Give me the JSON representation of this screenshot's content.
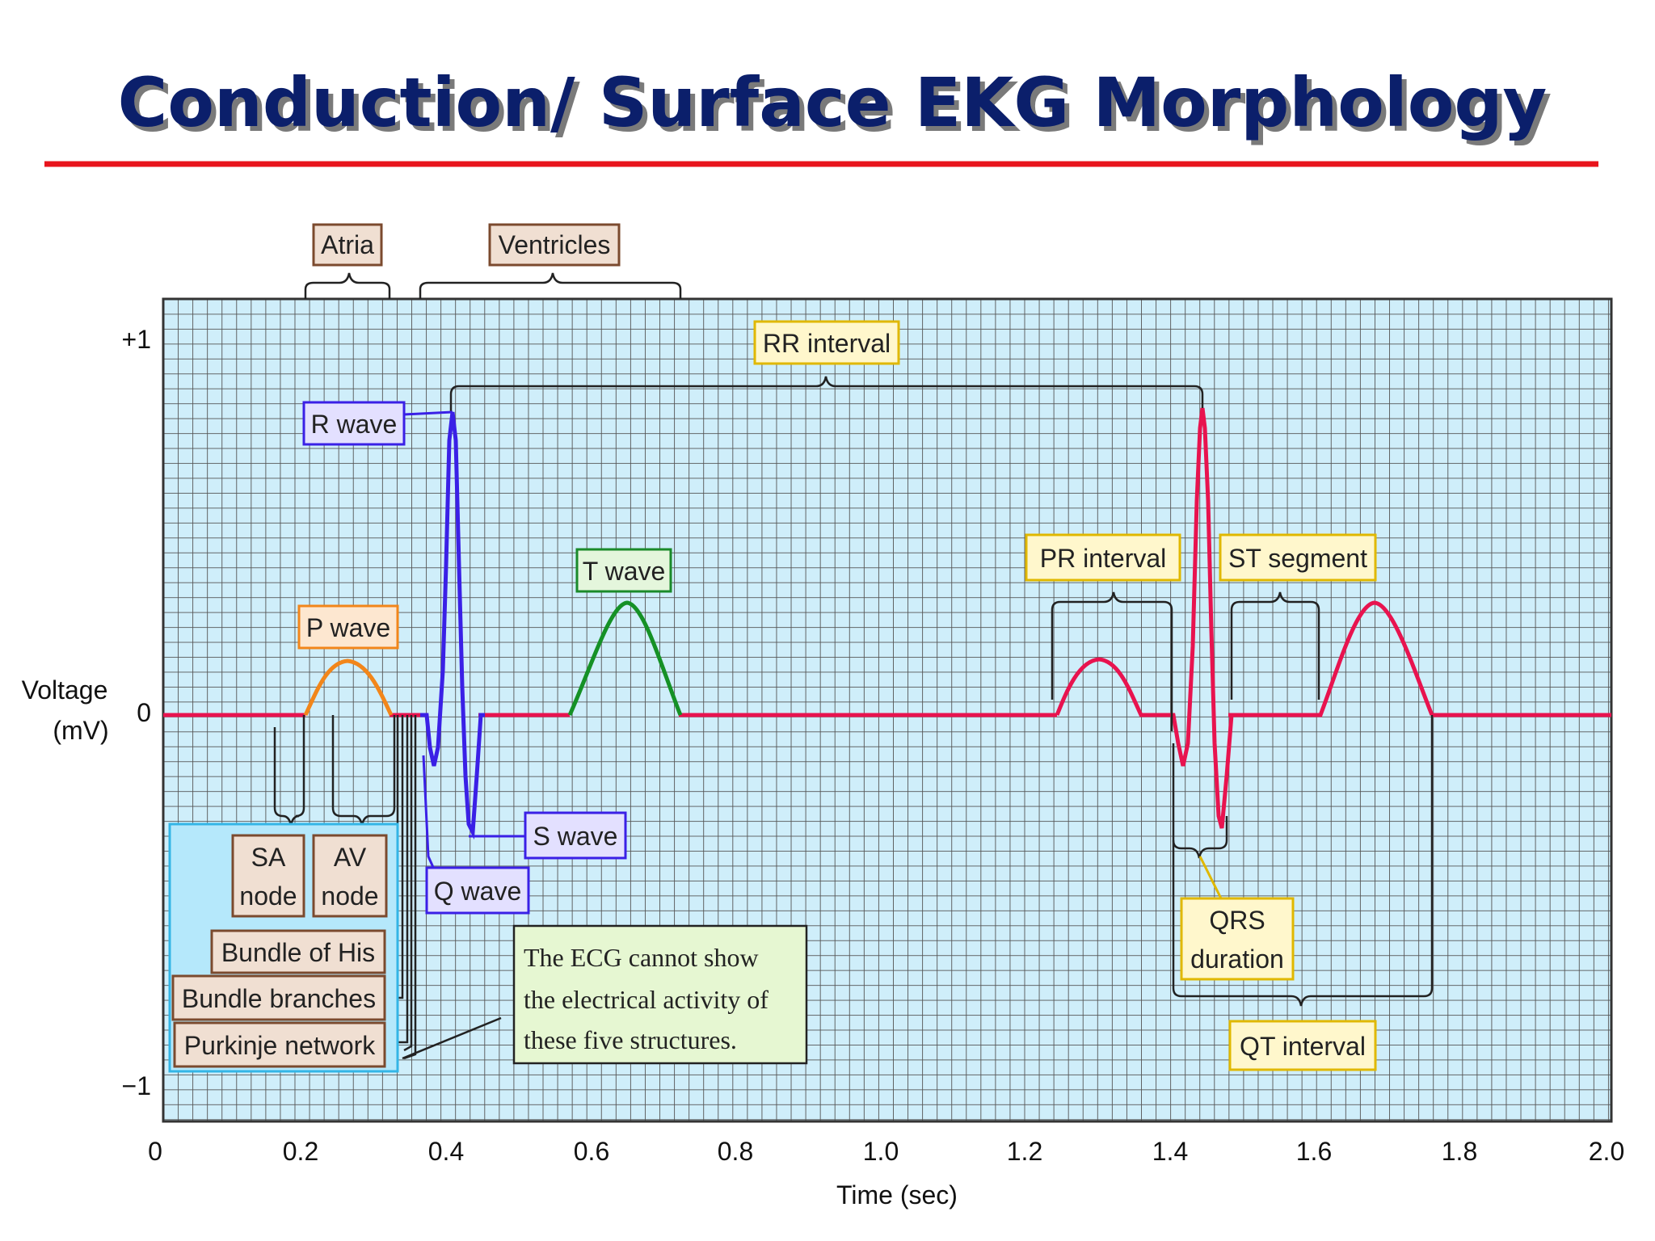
{
  "title": "Conduction/ Surface EKG Morphology",
  "colors": {
    "title": "#0b1f6b",
    "title_underline": "#e8141c",
    "grid_bg": "#cfeefa",
    "grid_line": "#555555",
    "baseline": "#e8134f",
    "p_wave": "#f2861a",
    "t_wave": "#159126",
    "qrs": "#3a20e6",
    "second_beat": "#e8134f",
    "brown_label_bg": "#f0dfd2",
    "brown_label_border": "#7b4a2e",
    "yellow_label_bg": "#fff7cc",
    "yellow_label_border": "#e0b800",
    "green_label_border": "#1a8a2a",
    "blue_label_bg": "#e3e0ff",
    "blue_label_border": "#3a20e6",
    "structures_box_bg": "#b5e8fb",
    "structures_box_border": "#33b5e6",
    "note_bg": "#e6f7d2"
  },
  "axes": {
    "y_label_line1": "Voltage",
    "y_label_line2": "(mV)",
    "y_ticks": [
      "+1",
      "0",
      "−1"
    ],
    "x_label": "Time (sec)",
    "x_ticks": [
      "0",
      "0.2",
      "0.4",
      "0.6",
      "0.8",
      "1.0",
      "1.2",
      "1.4",
      "1.6",
      "1.8",
      "2.0"
    ]
  },
  "labels": {
    "atria": "Atria",
    "ventricles": "Ventricles",
    "rr_interval": "RR interval",
    "r_wave": "R wave",
    "t_wave": "T wave",
    "p_wave": "P wave",
    "pr_interval": "PR interval",
    "st_segment": "ST segment",
    "s_wave": "S wave",
    "q_wave": "Q wave",
    "qrs_line1": "QRS",
    "qrs_line2": "duration",
    "qt_interval": "QT interval",
    "sa_line1": "SA",
    "sa_line2": "node",
    "av_line1": "AV",
    "av_line2": "node",
    "bundle_his": "Bundle of His",
    "bundle_branches": "Bundle branches",
    "purkinje": "Purkinje network",
    "note_line1": "The ECG cannot show",
    "note_line2": "the electrical activity of",
    "note_line3": "these five structures."
  }
}
